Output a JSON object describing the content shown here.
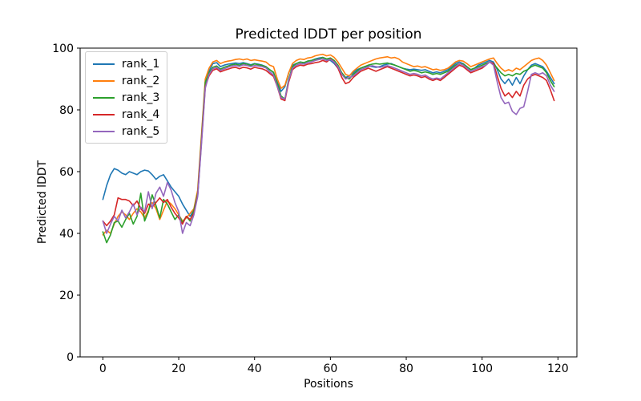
{
  "figure": {
    "background": "#ffffff",
    "text_color": "#000000",
    "spine_color": "#000000",
    "legend_border_color": "#cccccc",
    "legend_position": "upper left"
  },
  "chart_data": {
    "type": "line",
    "title": "Predicted lDDT per position",
    "xlabel": "Positions",
    "ylabel": "Predicted lDDT",
    "xlim": [
      -6,
      125
    ],
    "ylim": [
      0,
      100
    ],
    "xticks": [
      0,
      20,
      40,
      60,
      80,
      100,
      120
    ],
    "yticks": [
      0,
      20,
      40,
      60,
      80,
      100
    ],
    "grid": false,
    "legend_position": "upper left",
    "x": [
      0,
      1,
      2,
      3,
      4,
      5,
      6,
      7,
      8,
      9,
      10,
      11,
      12,
      13,
      14,
      15,
      16,
      17,
      18,
      19,
      20,
      21,
      22,
      23,
      24,
      25,
      26,
      27,
      28,
      29,
      30,
      31,
      32,
      33,
      34,
      35,
      36,
      37,
      38,
      39,
      40,
      41,
      42,
      43,
      44,
      45,
      46,
      47,
      48,
      49,
      50,
      51,
      52,
      53,
      54,
      55,
      56,
      57,
      58,
      59,
      60,
      61,
      62,
      63,
      64,
      65,
      66,
      67,
      68,
      69,
      70,
      71,
      72,
      73,
      74,
      75,
      76,
      77,
      78,
      79,
      80,
      81,
      82,
      83,
      84,
      85,
      86,
      87,
      88,
      89,
      90,
      91,
      92,
      93,
      94,
      95,
      96,
      97,
      98,
      99,
      100,
      101,
      102,
      103,
      104,
      105,
      106,
      107,
      108,
      109,
      110,
      111,
      112,
      113,
      114,
      115,
      116,
      117,
      118,
      119
    ],
    "series": [
      {
        "name": "rank_1",
        "color": "#1f77b4",
        "values": [
          51.0,
          55.5,
          59.0,
          61.0,
          60.5,
          59.5,
          59.0,
          60.0,
          59.5,
          59.0,
          60.0,
          60.5,
          60.2,
          59.0,
          57.5,
          58.5,
          59.0,
          57.0,
          55.0,
          53.5,
          52.0,
          49.5,
          47.5,
          45.5,
          47.5,
          52.0,
          70.0,
          88.0,
          92.5,
          95.0,
          95.3,
          94.0,
          94.5,
          94.8,
          95.0,
          95.2,
          95.0,
          95.3,
          95.0,
          94.6,
          95.0,
          94.8,
          94.5,
          94.0,
          93.0,
          92.0,
          89.0,
          86.0,
          87.5,
          92.0,
          94.5,
          95.0,
          95.5,
          95.2,
          95.8,
          96.0,
          96.5,
          96.8,
          97.0,
          96.5,
          96.0,
          95.0,
          93.5,
          91.5,
          90.5,
          91.0,
          92.0,
          93.0,
          93.5,
          94.0,
          94.2,
          94.0,
          93.8,
          94.0,
          94.5,
          94.8,
          95.0,
          94.5,
          94.0,
          93.5,
          93.2,
          93.0,
          93.2,
          93.0,
          92.8,
          93.0,
          92.5,
          92.0,
          92.3,
          92.0,
          92.5,
          93.0,
          94.0,
          95.0,
          95.5,
          95.0,
          94.0,
          93.0,
          93.5,
          94.5,
          95.0,
          95.5,
          96.0,
          95.5,
          93.0,
          90.0,
          88.5,
          90.0,
          88.0,
          90.5,
          88.5,
          91.0,
          93.0,
          94.5,
          95.0,
          94.5,
          94.0,
          92.5,
          90.5,
          88.5
        ]
      },
      {
        "name": "rank_2",
        "color": "#ff7f0e",
        "values": [
          39.5,
          41.0,
          40.0,
          43.0,
          45.5,
          47.0,
          46.0,
          44.5,
          46.5,
          48.0,
          47.0,
          45.0,
          47.5,
          50.0,
          48.0,
          44.5,
          47.5,
          50.5,
          49.5,
          48.0,
          46.0,
          44.0,
          45.0,
          46.5,
          48.0,
          54.0,
          72.0,
          90.0,
          93.5,
          95.5,
          96.0,
          95.0,
          95.5,
          95.8,
          96.0,
          96.3,
          96.5,
          96.2,
          96.5,
          96.0,
          96.2,
          96.0,
          95.8,
          95.5,
          94.5,
          94.0,
          90.0,
          87.0,
          88.0,
          92.0,
          95.0,
          96.0,
          96.5,
          96.3,
          96.8,
          97.0,
          97.5,
          97.8,
          98.0,
          97.5,
          97.8,
          97.0,
          95.5,
          93.5,
          91.5,
          91.0,
          92.5,
          93.5,
          94.5,
          95.0,
          95.5,
          96.0,
          96.5,
          96.8,
          97.0,
          97.2,
          96.8,
          97.0,
          96.5,
          95.5,
          95.0,
          94.5,
          94.0,
          94.2,
          93.8,
          94.0,
          93.5,
          93.0,
          93.2,
          92.8,
          93.0,
          93.5,
          94.5,
          95.5,
          96.0,
          95.8,
          95.0,
          94.0,
          94.5,
          95.0,
          95.5,
          96.0,
          96.5,
          96.8,
          95.0,
          93.5,
          92.5,
          93.0,
          92.5,
          93.5,
          93.0,
          94.0,
          95.0,
          96.0,
          96.5,
          96.8,
          96.0,
          94.5,
          92.0,
          89.5
        ]
      },
      {
        "name": "rank_3",
        "color": "#2ca02c",
        "values": [
          40.5,
          37.0,
          39.5,
          43.5,
          44.0,
          42.0,
          44.5,
          46.5,
          43.0,
          45.5,
          53.0,
          44.0,
          47.0,
          52.5,
          49.0,
          45.0,
          51.0,
          49.5,
          47.0,
          44.5,
          46.0,
          43.5,
          45.5,
          44.0,
          47.5,
          53.0,
          71.0,
          89.0,
          92.0,
          93.8,
          94.2,
          93.2,
          93.8,
          94.2,
          94.6,
          94.8,
          94.5,
          95.0,
          94.8,
          94.4,
          94.9,
          94.6,
          94.4,
          94.0,
          93.0,
          92.2,
          88.5,
          84.5,
          83.5,
          90.0,
          94.0,
          95.0,
          95.5,
          95.3,
          95.8,
          96.0,
          96.3,
          96.5,
          97.0,
          96.5,
          96.8,
          96.0,
          94.5,
          92.0,
          90.5,
          90.0,
          91.5,
          92.5,
          93.5,
          94.0,
          94.5,
          94.8,
          95.0,
          94.8,
          95.0,
          95.2,
          94.8,
          94.5,
          94.0,
          93.5,
          93.0,
          92.5,
          92.8,
          92.5,
          92.0,
          92.3,
          92.0,
          91.5,
          91.8,
          91.5,
          92.0,
          92.5,
          93.5,
          94.5,
          95.0,
          94.8,
          94.0,
          93.0,
          93.5,
          94.0,
          94.5,
          95.0,
          95.5,
          95.0,
          93.5,
          92.0,
          91.0,
          91.5,
          91.0,
          91.8,
          91.5,
          92.5,
          93.0,
          94.0,
          94.5,
          94.0,
          93.5,
          92.0,
          89.5,
          87.5
        ]
      },
      {
        "name": "rank_4",
        "color": "#d62728",
        "values": [
          44.0,
          42.5,
          44.0,
          46.0,
          51.5,
          51.0,
          51.0,
          50.5,
          49.0,
          50.5,
          48.0,
          46.5,
          49.5,
          48.5,
          50.0,
          51.5,
          50.0,
          51.0,
          48.5,
          46.5,
          45.0,
          43.0,
          45.5,
          44.5,
          46.5,
          52.5,
          70.0,
          87.5,
          91.0,
          92.8,
          93.3,
          92.3,
          92.8,
          93.2,
          93.6,
          93.8,
          93.3,
          93.8,
          93.6,
          93.2,
          93.8,
          93.5,
          93.3,
          92.8,
          91.8,
          90.8,
          87.5,
          83.5,
          83.0,
          89.0,
          93.0,
          94.0,
          94.5,
          94.3,
          94.8,
          95.0,
          95.3,
          95.5,
          96.0,
          95.5,
          96.5,
          95.5,
          93.5,
          90.5,
          88.5,
          89.0,
          90.5,
          91.5,
          92.5,
          93.0,
          93.5,
          93.0,
          92.5,
          93.0,
          93.5,
          94.0,
          93.5,
          93.0,
          92.5,
          92.0,
          91.5,
          91.0,
          91.3,
          91.0,
          90.5,
          90.8,
          90.0,
          89.5,
          90.0,
          89.5,
          90.5,
          91.5,
          92.5,
          93.5,
          94.5,
          94.0,
          93.0,
          92.0,
          92.5,
          93.0,
          93.5,
          94.5,
          95.5,
          95.0,
          91.0,
          87.0,
          84.5,
          85.5,
          84.0,
          86.0,
          84.5,
          88.0,
          90.0,
          91.0,
          91.5,
          91.0,
          90.5,
          89.5,
          86.5,
          83.0
        ]
      },
      {
        "name": "rank_5",
        "color": "#9467bd",
        "values": [
          44.0,
          40.0,
          43.0,
          45.5,
          44.0,
          47.5,
          45.0,
          47.0,
          49.5,
          46.0,
          48.5,
          47.0,
          53.5,
          48.0,
          53.0,
          55.0,
          52.0,
          56.5,
          54.0,
          50.0,
          47.0,
          40.0,
          43.5,
          42.5,
          46.0,
          52.0,
          69.0,
          87.0,
          91.5,
          93.3,
          93.8,
          92.8,
          93.3,
          93.8,
          94.2,
          94.4,
          94.1,
          94.6,
          94.4,
          94.0,
          94.4,
          94.2,
          94.0,
          93.6,
          92.3,
          91.3,
          87.5,
          84.0,
          83.5,
          89.5,
          93.5,
          94.5,
          95.0,
          94.8,
          95.3,
          95.5,
          96.0,
          96.3,
          96.5,
          96.0,
          96.3,
          95.5,
          94.0,
          91.5,
          90.0,
          90.5,
          91.0,
          92.0,
          93.0,
          93.5,
          94.0,
          94.3,
          94.0,
          93.8,
          94.0,
          94.3,
          94.0,
          93.5,
          93.0,
          92.5,
          92.0,
          91.5,
          91.8,
          91.5,
          91.0,
          91.3,
          90.5,
          90.0,
          90.3,
          90.0,
          91.0,
          92.0,
          93.0,
          94.0,
          95.0,
          94.5,
          93.5,
          92.5,
          93.0,
          93.5,
          94.0,
          94.5,
          95.5,
          94.5,
          89.0,
          84.0,
          82.0,
          82.5,
          79.5,
          78.5,
          80.5,
          81.0,
          86.0,
          91.5,
          92.0,
          91.5,
          92.0,
          91.0,
          88.0,
          86.0
        ]
      }
    ]
  }
}
